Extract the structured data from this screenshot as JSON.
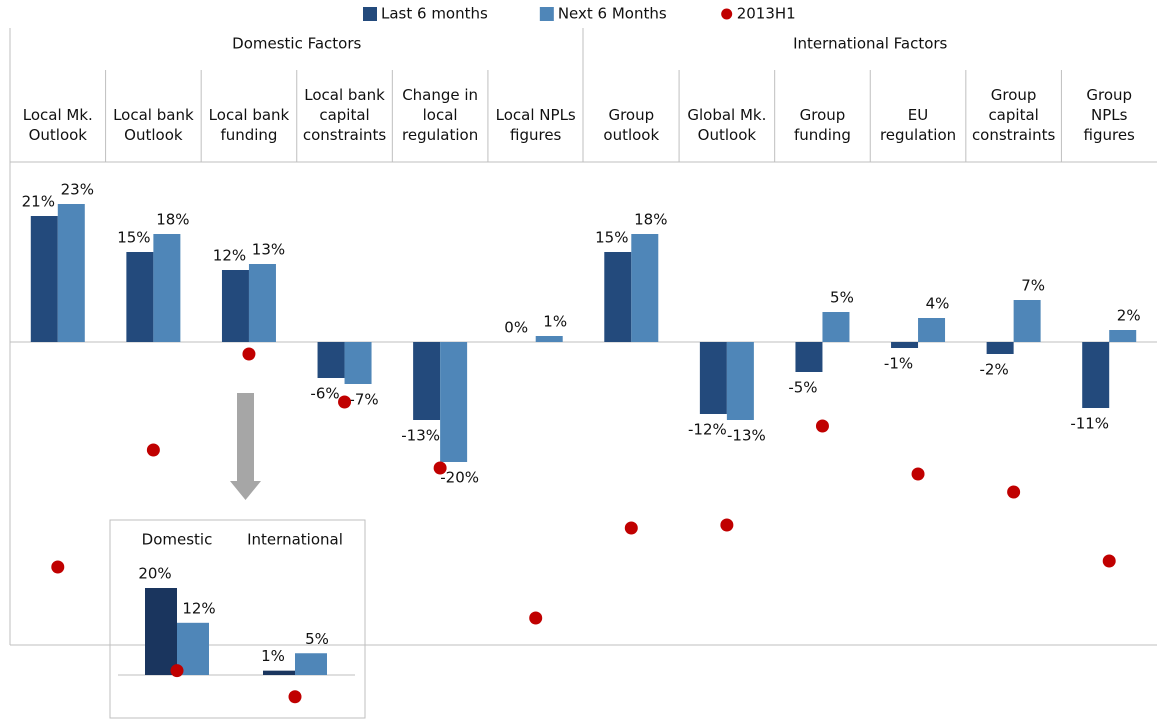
{
  "chart_data": [
    {
      "type": "bar",
      "groups": [
        "Domestic Factors",
        "International Factors"
      ],
      "categories": [
        "Local Mk.\nOutlook",
        "Local bank\nOutlook",
        "Local bank\nfunding",
        "Local bank\ncapital\nconstraints",
        "Change in\nlocal\nregulation",
        "Local NPLs\nfigures",
        "Group\noutlook",
        "Global Mk.\nOutlook",
        "Group\nfunding",
        "EU\nregulation",
        "Group\ncapital\nconstraints",
        "Group\nNPLs\nfigures"
      ],
      "series": [
        {
          "name": "Last 6 months",
          "color": "#234a7c",
          "values": [
            21,
            15,
            12,
            -6,
            -13,
            0,
            15,
            -12,
            -5,
            -1,
            -2,
            -11
          ],
          "value_labels": [
            "21%",
            "15%",
            "12%",
            "-6%",
            "-13%",
            "0%",
            "15%",
            "-12%",
            "-5%",
            "-1%",
            "-2%",
            "-11%"
          ]
        },
        {
          "name": "Next 6 Months",
          "color": "#4f86b8",
          "values": [
            23,
            18,
            13,
            -7,
            -20,
            1,
            18,
            -13,
            5,
            4,
            7,
            2
          ],
          "value_labels": [
            "23%",
            "18%",
            "13%",
            "-7%",
            "-20%",
            "1%",
            "18%",
            "-13%",
            "5%",
            "4%",
            "7%",
            "2%"
          ]
        },
        {
          "name": "2013H1",
          "type": "scatter",
          "color": "#c00000",
          "values": [
            -37.5,
            -18,
            -2,
            -10,
            -21,
            -46,
            -31,
            -30.5,
            -14,
            -22,
            -25,
            -36.5
          ]
        }
      ]
    },
    {
      "type": "bar",
      "categories": [
        "Domestic",
        "International"
      ],
      "series": [
        {
          "color": "#1a355e",
          "values": [
            20,
            1
          ],
          "value_labels": [
            "20%",
            "1%"
          ]
        },
        {
          "color": "#4f86b8",
          "values": [
            12,
            5
          ],
          "value_labels": [
            "12%",
            "5%"
          ]
        },
        {
          "type": "scatter",
          "color": "#c00000",
          "values": [
            1,
            -5
          ]
        }
      ]
    }
  ]
}
